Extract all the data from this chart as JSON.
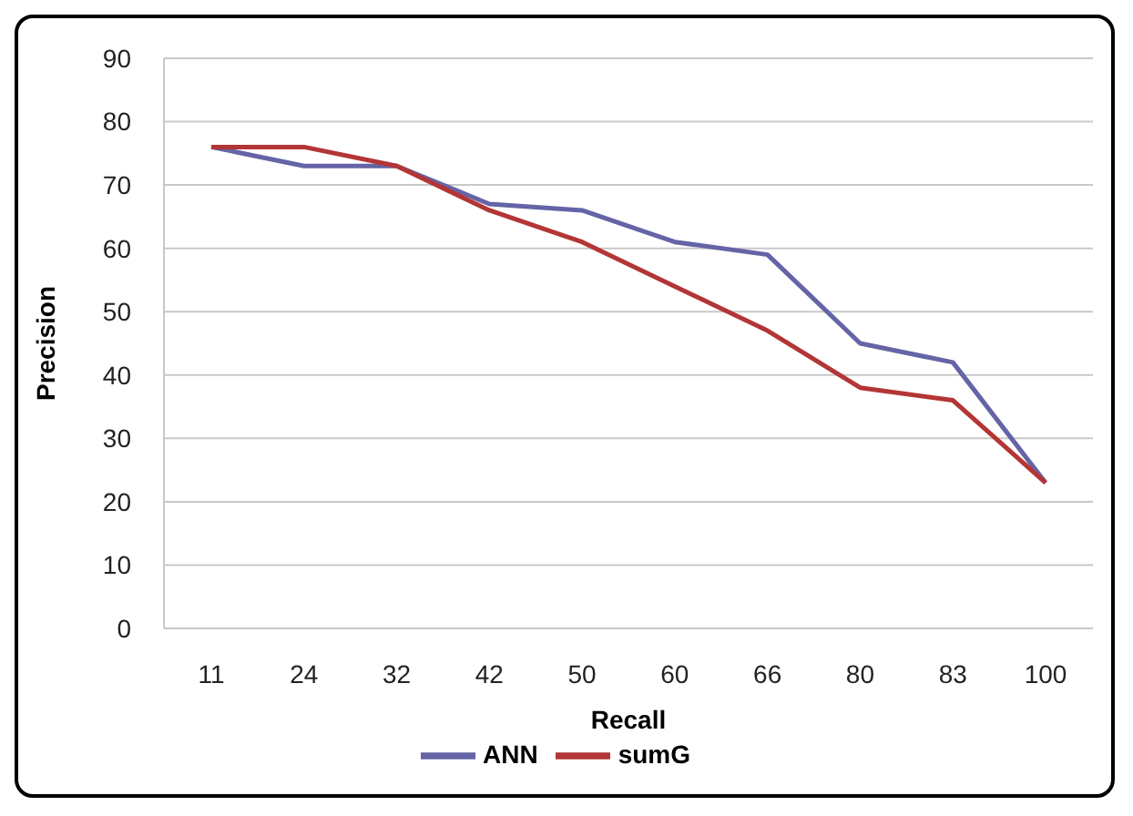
{
  "chart_data": {
    "type": "line",
    "xlabel": "Recall",
    "ylabel": "Precision",
    "categories": [
      "11",
      "24",
      "32",
      "42",
      "50",
      "60",
      "66",
      "80",
      "83",
      "100"
    ],
    "series": [
      {
        "name": "ANN",
        "color": "#6464a6",
        "values": [
          76,
          73,
          73,
          67,
          66,
          61,
          59,
          45,
          42,
          23
        ]
      },
      {
        "name": "sumG",
        "color": "#b33535",
        "values": [
          76,
          76,
          73,
          66,
          61,
          54,
          47,
          38,
          36,
          23
        ]
      }
    ],
    "ylim": [
      0,
      90
    ],
    "yticks": [
      0,
      10,
      20,
      30,
      40,
      50,
      60,
      70,
      80,
      90
    ],
    "grid": "y",
    "legend": "bottom",
    "marker": "none",
    "line_style": "solid"
  }
}
